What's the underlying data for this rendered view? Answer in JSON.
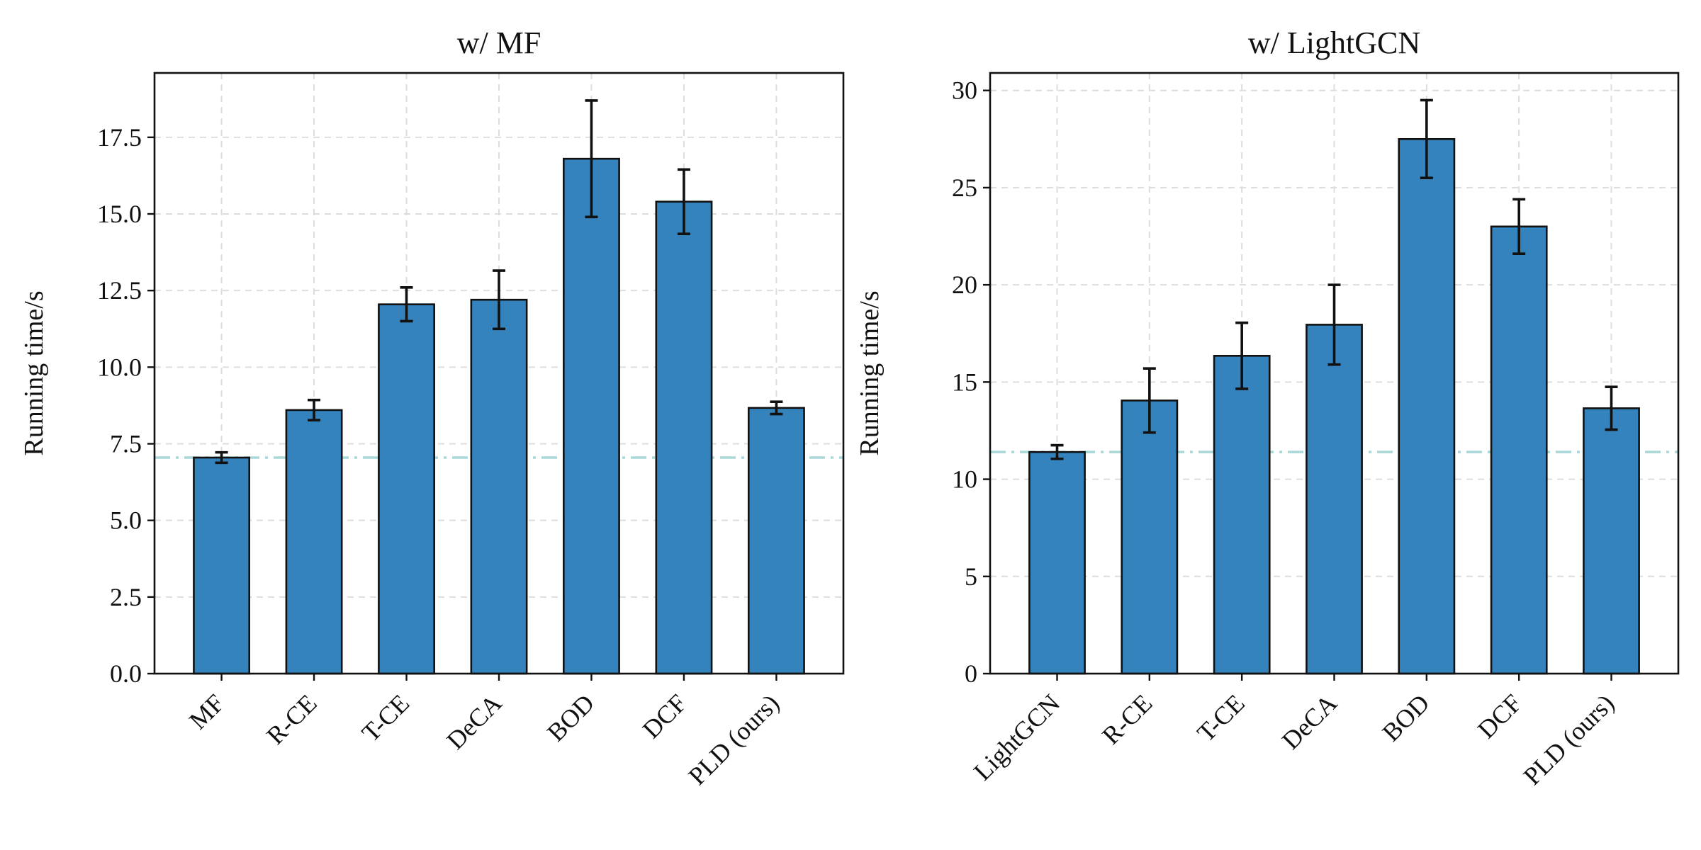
{
  "colors": {
    "bar_fill": "#3583bc",
    "bar_edge": "#111111",
    "reference_line": "#a8d8d8",
    "grid": "#dddddd"
  },
  "chart_data": [
    {
      "type": "bar",
      "title": "w/ MF",
      "xlabel": "",
      "ylabel": "Running time/s",
      "categories": [
        "MF",
        "R-CE",
        "T-CE",
        "DeCA",
        "BOD",
        "DCF",
        "PLD (ours)"
      ],
      "values": [
        7.05,
        8.6,
        12.05,
        12.2,
        16.8,
        15.4,
        8.67
      ],
      "errors": [
        0.17,
        0.33,
        0.55,
        0.95,
        1.9,
        1.05,
        0.2
      ],
      "reference_line": 7.05,
      "ylim": [
        0,
        19.6
      ],
      "yticks": [
        0,
        2.5,
        5,
        7.5,
        10,
        12.5,
        15,
        17.5
      ],
      "ytick_labels": [
        "0.0",
        "2.5",
        "5.0",
        "7.5",
        "10.0",
        "12.5",
        "15.0",
        "17.5"
      ],
      "grid": true
    },
    {
      "type": "bar",
      "title": "w/ LightGCN",
      "xlabel": "",
      "ylabel": "Running time/s",
      "categories": [
        "LightGCN",
        "R-CE",
        "T-CE",
        "DeCA",
        "BOD",
        "DCF",
        "PLD (ours)"
      ],
      "values": [
        11.4,
        14.05,
        16.35,
        17.95,
        27.5,
        23.0,
        13.65
      ],
      "errors": [
        0.35,
        1.65,
        1.7,
        2.05,
        2.0,
        1.4,
        1.1
      ],
      "reference_line": 11.4,
      "ylim": [
        0,
        30.9
      ],
      "yticks": [
        0,
        5,
        10,
        15,
        20,
        25,
        30
      ],
      "ytick_labels": [
        "0",
        "5",
        "10",
        "15",
        "20",
        "25",
        "30"
      ],
      "grid": true
    }
  ]
}
